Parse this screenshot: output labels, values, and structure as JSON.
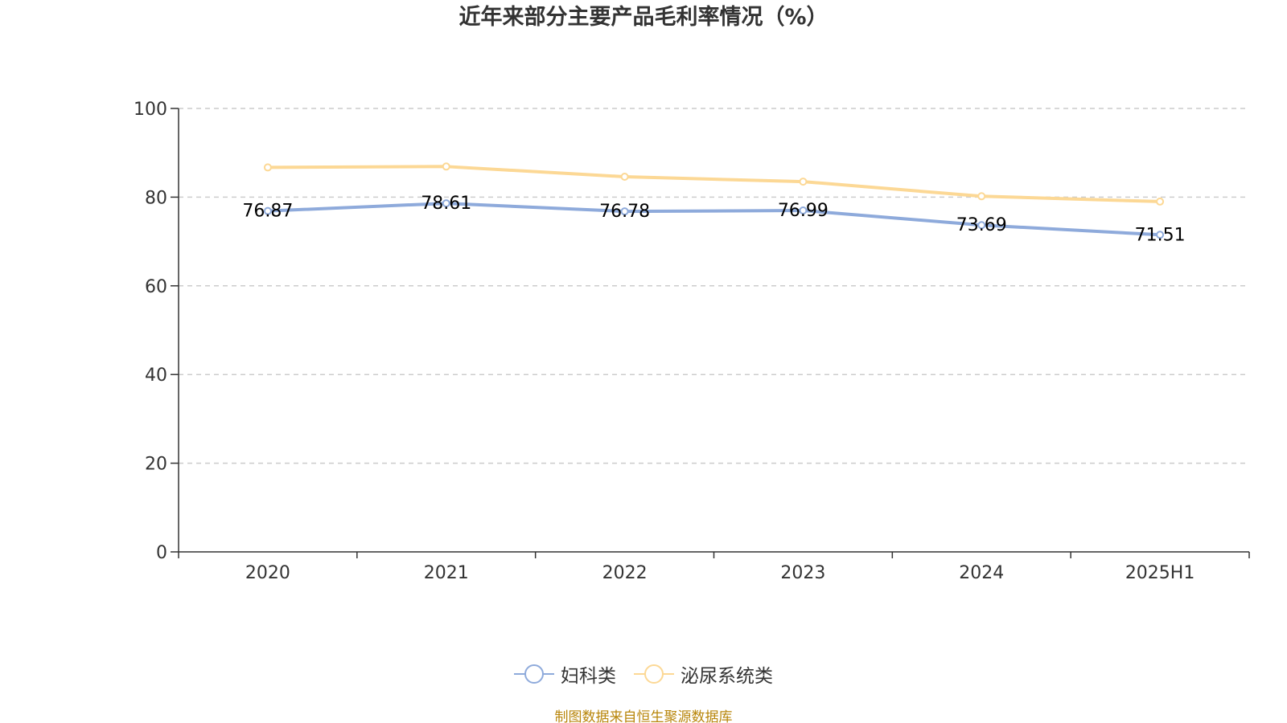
{
  "chart_data": {
    "type": "line",
    "title": "近年来部分主要产品毛利率情况（%）",
    "categories": [
      "2020",
      "2021",
      "2022",
      "2023",
      "2024",
      "2025H1"
    ],
    "ylim": [
      0,
      100
    ],
    "yticks": [
      "0",
      "20",
      "40",
      "60",
      "80",
      "100"
    ],
    "grid": true,
    "legend_position": "bottom",
    "series": [
      {
        "name": "妇科类",
        "color": "#8eaadb",
        "values": [
          76.87,
          78.61,
          76.78,
          76.99,
          73.69,
          71.51
        ],
        "labels": [
          "76.87",
          "78.61",
          "76.78",
          "76.99",
          "73.69",
          "71.51"
        ]
      },
      {
        "name": "泌尿系统类",
        "color": "#fcd895",
        "values": [
          86.7,
          86.9,
          84.6,
          83.5,
          80.2,
          79.0
        ]
      }
    ]
  },
  "legend": {
    "items": [
      {
        "label": "妇科类",
        "color": "#8eaadb"
      },
      {
        "label": "泌尿系统类",
        "color": "#fcd895"
      }
    ]
  },
  "footer": {
    "source": "制图数据来自恒生聚源数据库"
  }
}
